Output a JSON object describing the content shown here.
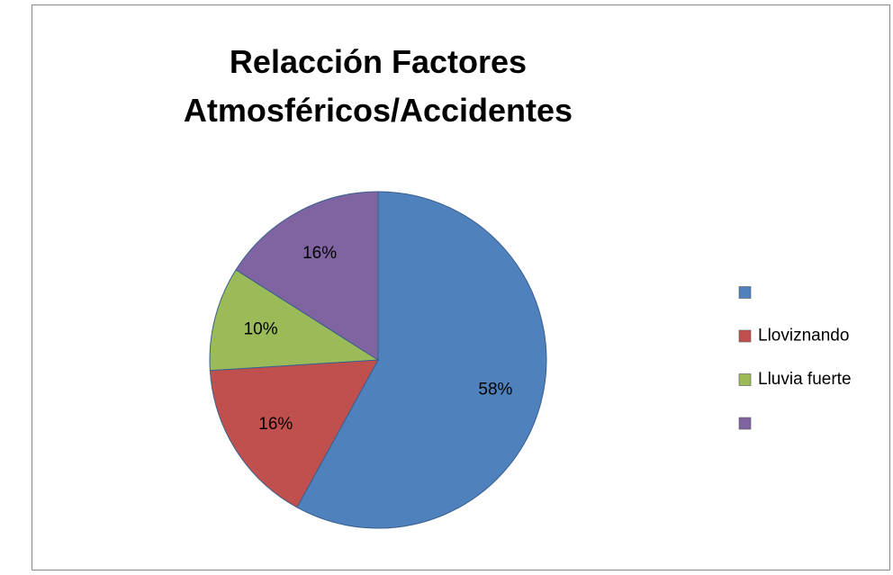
{
  "chart_data": {
    "type": "pie",
    "title": "Relacción Factores Atmosféricos/Accidentes",
    "categories": [
      null,
      "Lloviznando",
      "Lluvia fuerte",
      null
    ],
    "values": [
      58,
      16,
      10,
      16
    ],
    "value_labels": [
      "58%",
      "16%",
      "10%",
      "16%"
    ],
    "colors": [
      "#4f81bd",
      "#c0504d",
      "#9bbb59",
      "#8064a2"
    ],
    "legend": "right"
  }
}
